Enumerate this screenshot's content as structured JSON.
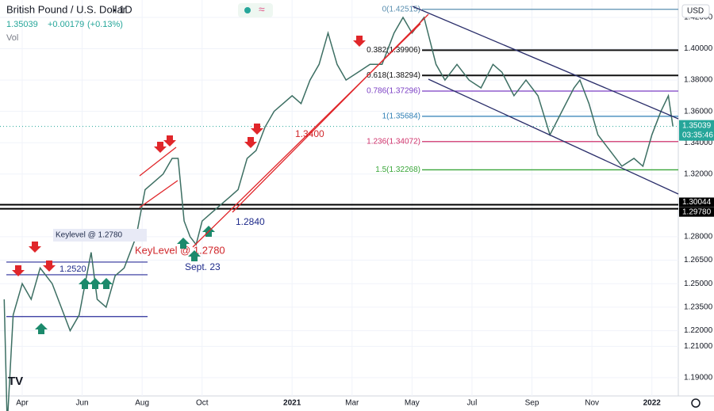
{
  "header": {
    "symbol": "British Pound / U.S. Dollar",
    "interval": "1D",
    "price": 1.35039,
    "change": {
      "value": 0.00179,
      "label": "+0.00179"
    },
    "change_pct": {
      "value": 0.13,
      "label": "(+0.13%)"
    },
    "volume_label": "Vol",
    "currency": "USD",
    "countdown": "03:35:46"
  },
  "chart_data": {
    "type": "line",
    "color": "#3d6f63",
    "x": [
      2.4,
      2.5,
      2.7,
      3.0,
      3.3,
      3.6,
      4.0,
      4.3,
      4.6,
      4.9,
      5.1,
      5.3,
      5.5,
      5.8,
      6.1,
      6.4,
      6.8,
      7.1,
      7.4,
      7.7,
      8.0,
      8.2,
      8.4,
      8.6,
      8.8,
      9.0,
      9.3,
      9.6,
      9.9,
      10.2,
      10.5,
      10.8,
      11.1,
      11.4,
      11.7,
      12.0,
      12.3,
      12.6,
      12.9,
      13.2,
      13.5,
      13.8,
      14.2,
      14.6,
      15.0,
      15.4,
      15.7,
      16.0,
      16.4,
      16.8,
      17.1,
      17.5,
      17.9,
      18.3,
      18.7,
      19.0,
      19.4,
      19.8,
      20.2,
      20.6,
      21.0,
      21.4,
      21.6,
      21.9,
      22.2,
      22.6,
      23.0,
      23.4,
      23.7,
      24.0,
      24.3,
      24.55,
      24.7
    ],
    "values": [
      1.24,
      1.16,
      1.23,
      1.25,
      1.24,
      1.26,
      1.25,
      1.235,
      1.22,
      1.23,
      1.25,
      1.27,
      1.24,
      1.235,
      1.255,
      1.26,
      1.28,
      1.31,
      1.315,
      1.32,
      1.33,
      1.33,
      1.29,
      1.28,
      1.275,
      1.29,
      1.295,
      1.3,
      1.305,
      1.31,
      1.33,
      1.335,
      1.35,
      1.36,
      1.365,
      1.37,
      1.365,
      1.38,
      1.39,
      1.41,
      1.39,
      1.38,
      1.385,
      1.39,
      1.39,
      1.41,
      1.42,
      1.41,
      1.42,
      1.39,
      1.38,
      1.39,
      1.38,
      1.375,
      1.39,
      1.385,
      1.37,
      1.38,
      1.37,
      1.345,
      1.36,
      1.375,
      1.38,
      1.365,
      1.345,
      1.335,
      1.325,
      1.33,
      1.325,
      1.345,
      1.36,
      1.37,
      1.35039
    ],
    "xlim": [
      2.26,
      24.88
    ],
    "xticks": [
      {
        "value": 3,
        "label": "Apr"
      },
      {
        "value": 5,
        "label": "Jun"
      },
      {
        "value": 7,
        "label": "Aug"
      },
      {
        "value": 9,
        "label": "Oct"
      },
      {
        "value": 12,
        "label": "2021"
      },
      {
        "value": 14,
        "label": "Mar"
      },
      {
        "value": 16,
        "label": "May"
      },
      {
        "value": 18,
        "label": "Jul"
      },
      {
        "value": 20,
        "label": "Sep"
      },
      {
        "value": 22,
        "label": "Nov"
      },
      {
        "value": 24,
        "label": "2022"
      }
    ],
    "ylim": [
      1.1758,
      1.4311
    ],
    "yticks": [
      {
        "value": 1.42,
        "label": "1.42000"
      },
      {
        "value": 1.4,
        "label": "1.40000"
      },
      {
        "value": 1.38,
        "label": "1.38000"
      },
      {
        "value": 1.36,
        "label": "1.36000"
      },
      {
        "value": 1.34,
        "label": "1.34000"
      },
      {
        "value": 1.32,
        "label": "1.32000"
      },
      {
        "value": 1.28,
        "label": "1.28000"
      },
      {
        "value": 1.265,
        "label": "1.26500"
      },
      {
        "value": 1.25,
        "label": "1.25000"
      },
      {
        "value": 1.235,
        "label": "1.23500"
      },
      {
        "value": 1.22,
        "label": "1.22000"
      },
      {
        "value": 1.21,
        "label": "1.21000"
      },
      {
        "value": 1.19,
        "label": "1.19000"
      }
    ],
    "fib_levels": [
      {
        "label": "0(1.42515)",
        "value": 1.42515,
        "color": "#5a8fb0"
      },
      {
        "label": "0.382(1.39906)",
        "value": 1.39906,
        "color": "#111111"
      },
      {
        "label": "0.618(1.38294)",
        "value": 1.38294,
        "color": "#111111"
      },
      {
        "label": "0.786(1.37296)",
        "value": 1.37296,
        "color": "#7b3fc4"
      },
      {
        "label": "1(1.35684)",
        "value": 1.35684,
        "color": "#2f7fb5"
      },
      {
        "label": "1.236(1.34072)",
        "value": 1.34072,
        "color": "#d0336b"
      },
      {
        "label": "1.5(1.32268)",
        "value": 1.32268,
        "color": "#3aa63a"
      }
    ],
    "key_lines": [
      {
        "value": 1.30044,
        "label": "1.30044"
      },
      {
        "value": 1.2978,
        "label": "1.29780"
      }
    ],
    "support_lines": [
      1.2638,
      1.2557,
      1.229
    ],
    "annotations": [
      "1.3400",
      "1.2840",
      "KeyLevel @ 1.2780",
      "Sept. 23",
      "Keylevel @ 1.2780",
      "1.2520"
    ]
  }
}
